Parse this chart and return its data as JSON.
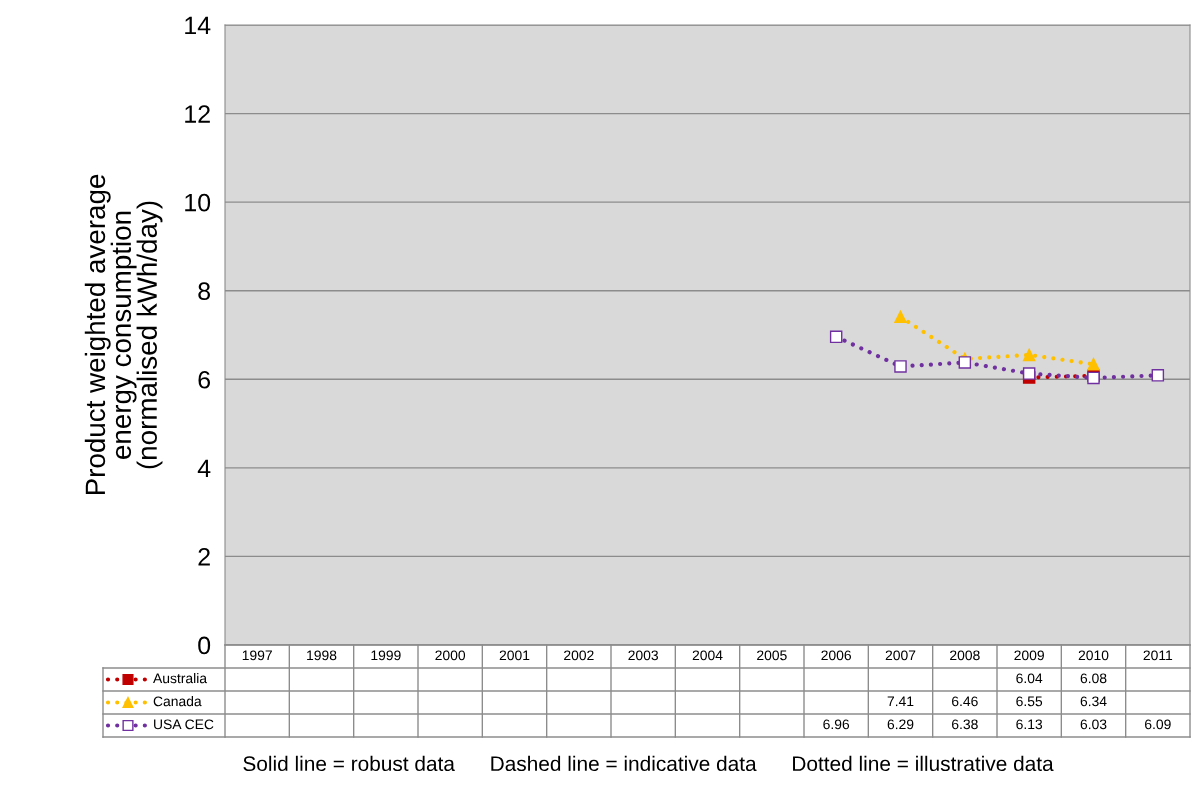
{
  "chart_data": {
    "type": "line",
    "ylabel": "Product weighted average\nenergy consumption\n(normalised kWh/day)",
    "categories": [
      "1997",
      "1998",
      "1999",
      "2000",
      "2001",
      "2002",
      "2003",
      "2004",
      "2005",
      "2006",
      "2007",
      "2008",
      "2009",
      "2010",
      "2011"
    ],
    "series": [
      {
        "name": "Australia",
        "color": "#c00000",
        "marker": "square",
        "values": [
          null,
          null,
          null,
          null,
          null,
          null,
          null,
          null,
          null,
          null,
          null,
          null,
          6.04,
          6.08,
          null
        ]
      },
      {
        "name": "Canada",
        "color": "#ffc000",
        "marker": "triangle",
        "values": [
          null,
          null,
          null,
          null,
          null,
          null,
          null,
          null,
          null,
          null,
          7.41,
          6.46,
          6.55,
          6.34,
          null
        ]
      },
      {
        "name": "USA CEC",
        "color": "#7030a0",
        "marker": "square_open",
        "values": [
          null,
          null,
          null,
          null,
          null,
          null,
          null,
          null,
          null,
          6.96,
          6.29,
          6.38,
          6.13,
          6.03,
          6.09
        ]
      }
    ],
    "ylim": [
      0,
      14
    ],
    "yticks": [
      0,
      2,
      4,
      6,
      8,
      10,
      12,
      14
    ],
    "grid": "y",
    "legend": "bottom left",
    "line_style": "dotted",
    "data_labels": true,
    "annotations": [
      "Solid line = robust data      Dashed line = indicative data      Dotted line = illustrative data"
    ]
  }
}
